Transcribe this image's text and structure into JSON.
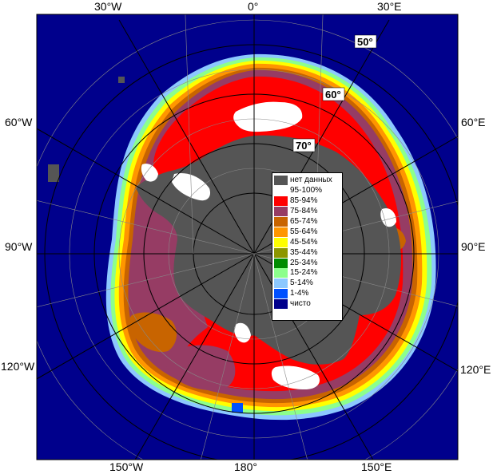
{
  "map": {
    "lon_labels_top": [
      "30°W",
      "0°",
      "30°E"
    ],
    "lon_labels_bottom": [
      "150°W",
      "180°",
      "150°E"
    ],
    "lon_labels_left": [
      "60°W",
      "90°W",
      "120°W"
    ],
    "lon_labels_right": [
      "60°E",
      "90°E",
      "120°E"
    ],
    "lat_labels": [
      "50°",
      "60°",
      "70°"
    ],
    "colors": {
      "ocean": "#00008c",
      "no_data": "#555555",
      "ice_95_100": "#ffffff",
      "ice_85_94": "#ff0000",
      "ice_75_84": "#963c64",
      "ice_65_74": "#c86400",
      "ice_55_64": "#ff8c00",
      "ice_45_54": "#ffff00",
      "ice_35_44": "#8c8c00",
      "ice_25_34": "#008c00",
      "ice_15_24": "#8cff8c",
      "ice_5_14": "#8cc8ff",
      "ice_1_4": "#0064ff",
      "clear": "#00008c"
    }
  },
  "legend": {
    "items": [
      {
        "label": "нет данных",
        "color": "#555555"
      },
      {
        "label": "95-100%",
        "color": "#ffffff"
      },
      {
        "label": "85-94%",
        "color": "#ff0000"
      },
      {
        "label": "75-84%",
        "color": "#963c64"
      },
      {
        "label": "65-74%",
        "color": "#c86400"
      },
      {
        "label": "55-64%",
        "color": "#ff9600"
      },
      {
        "label": "45-54%",
        "color": "#ffff00"
      },
      {
        "label": "35-44%",
        "color": "#8c9600"
      },
      {
        "label": "25-34%",
        "color": "#008c00"
      },
      {
        "label": "15-24%",
        "color": "#8cff8c"
      },
      {
        "label": "5-14%",
        "color": "#8cc8ff"
      },
      {
        "label": "1-4%",
        "color": "#0050ff"
      },
      {
        "label": "чисто",
        "color": "#00008c"
      }
    ]
  }
}
